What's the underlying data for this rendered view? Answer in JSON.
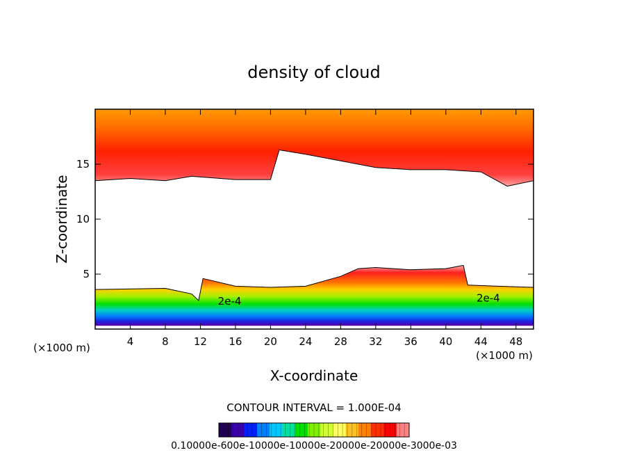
{
  "chart_data": {
    "type": "heatmap",
    "title": "density of cloud",
    "xlabel": "X-coordinate",
    "ylabel": "Z-coordinate",
    "x_unit": "(×1000 m)",
    "y_unit": "(×1000 m)",
    "xlim": [
      0,
      50
    ],
    "ylim": [
      0,
      20
    ],
    "x_ticks": [
      4,
      8,
      12,
      16,
      20,
      24,
      28,
      32,
      36,
      40,
      44,
      48
    ],
    "y_ticks": [
      5,
      10,
      15
    ],
    "contour_interval_text": "CONTOUR INTERVAL = 1.000E-04",
    "contour_labels": [
      {
        "text": "2e-4",
        "x": 14,
        "z": 2.2
      },
      {
        "text": "2e-4",
        "x": 43.5,
        "z": 2.5
      }
    ],
    "colorbar": {
      "label_text": "0.10000e-600e-10000e-10000e-20000e-20000e-3000e-03",
      "colors": [
        "#200050",
        "#3a00b0",
        "#0020ff",
        "#0080ff",
        "#00c8ff",
        "#00e0a0",
        "#00e000",
        "#80f000",
        "#d0ff30",
        "#ffff60",
        "#ffc020",
        "#ff8000",
        "#ff3000",
        "#ff0000",
        "#ff8080"
      ]
    },
    "upper_cloud_layer": {
      "base_z": [
        [
          0,
          13.5
        ],
        [
          4,
          13.7
        ],
        [
          8,
          13.5
        ],
        [
          11,
          13.9
        ],
        [
          16,
          13.6
        ],
        [
          20,
          13.6
        ],
        [
          21,
          16.3
        ],
        [
          24,
          15.9
        ],
        [
          28,
          15.3
        ],
        [
          32,
          14.7
        ],
        [
          36,
          14.5
        ],
        [
          40,
          14.5
        ],
        [
          44,
          14.3
        ],
        [
          47,
          13.0
        ],
        [
          50,
          13.5
        ]
      ],
      "top_z": 20
    },
    "lower_cloud_layer": {
      "top_z": [
        [
          0,
          3.6
        ],
        [
          8,
          3.7
        ],
        [
          11,
          3.2
        ],
        [
          11.8,
          2.6
        ],
        [
          12.3,
          4.6
        ],
        [
          16,
          3.9
        ],
        [
          20,
          3.8
        ],
        [
          24,
          3.9
        ],
        [
          28,
          4.8
        ],
        [
          30,
          5.5
        ],
        [
          32,
          5.6
        ],
        [
          36,
          5.4
        ],
        [
          40,
          5.5
        ],
        [
          42,
          5.8
        ],
        [
          42.5,
          4.0
        ],
        [
          46,
          3.9
        ],
        [
          50,
          3.8
        ]
      ],
      "base_z": 0.3
    }
  }
}
